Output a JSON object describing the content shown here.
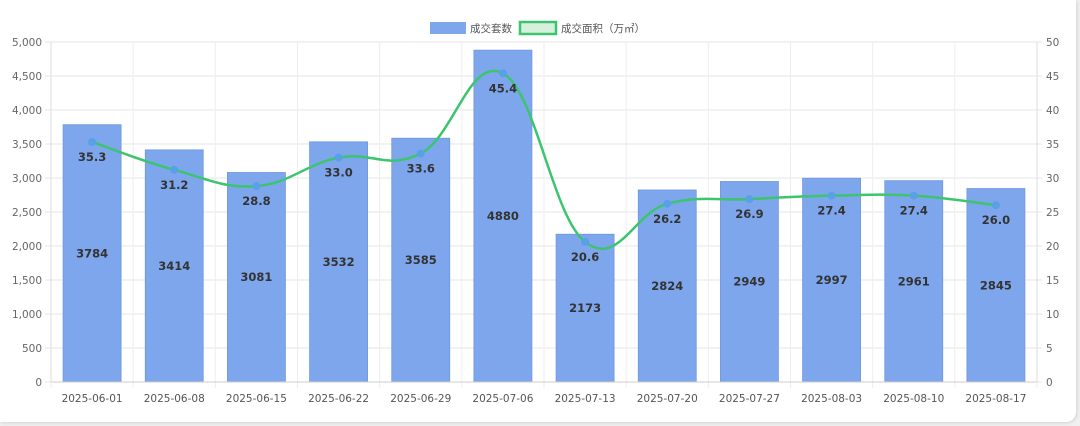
{
  "chart_data": {
    "type": "bar",
    "categories": [
      "2025-06-01",
      "2025-06-08",
      "2025-06-15",
      "2025-06-22",
      "2025-06-29",
      "2025-07-06",
      "2025-07-13",
      "2025-07-20",
      "2025-07-27",
      "2025-08-03",
      "2025-08-10",
      "2025-08-17"
    ],
    "series": [
      {
        "name": "成交套数",
        "type": "bar",
        "axis": "left",
        "color": "#7ea6ec",
        "values": [
          3784,
          3414,
          3081,
          3532,
          3585,
          4880,
          2173,
          2824,
          2949,
          2997,
          2961,
          2845
        ]
      },
      {
        "name": "成交面积（万㎡）",
        "type": "line",
        "axis": "right",
        "color": "#3cc46e",
        "values": [
          35.3,
          31.2,
          28.8,
          33.0,
          33.6,
          45.4,
          20.6,
          26.2,
          26.9,
          27.4,
          27.4,
          26.0
        ]
      }
    ],
    "y_left": {
      "min": 0,
      "max": 5000,
      "step": 500
    },
    "y_right": {
      "min": 0,
      "max": 50,
      "step": 5
    },
    "grid": true,
    "legend_position": "top-center"
  }
}
